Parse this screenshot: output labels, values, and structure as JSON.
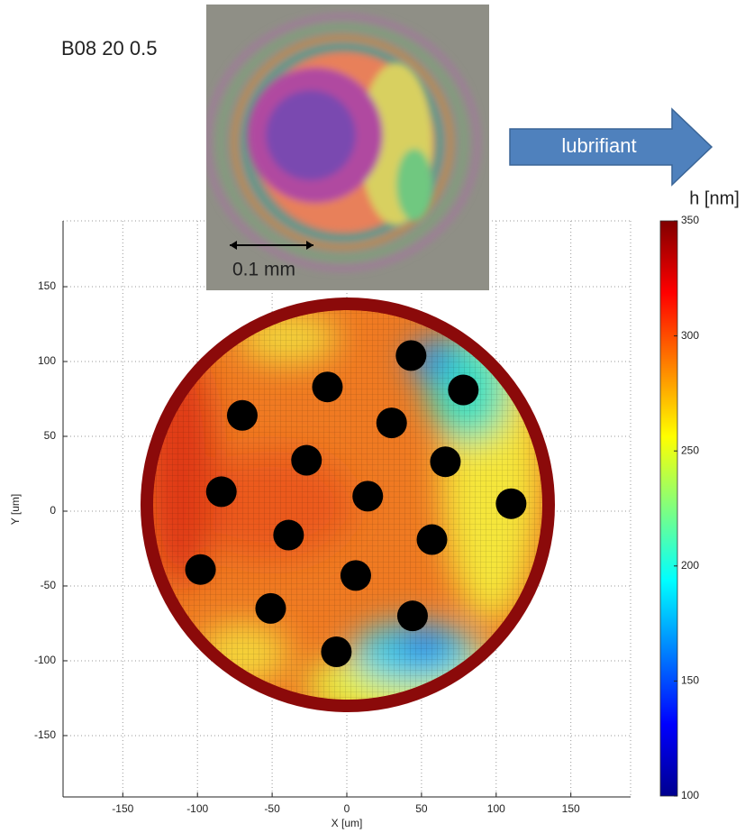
{
  "chart_data": {
    "type": "heatmap",
    "title": "B08 20 0.5",
    "x_label": "X [um]",
    "y_label": "Y [um]",
    "annotations": [
      "0.1 mm",
      "lubrifiant"
    ],
    "xlim": [
      -190,
      190
    ],
    "ylim": [
      -191,
      194
    ],
    "xticks": [
      -150,
      -100,
      -50,
      0,
      50,
      100,
      150
    ],
    "yticks": [
      -150,
      -100,
      -50,
      0,
      50,
      100,
      150
    ],
    "grid": true,
    "colorbar": {
      "label": "h [nm]",
      "lim": [
        100,
        350
      ],
      "ticks": [
        100,
        150,
        200,
        250,
        300,
        350
      ],
      "colormap": "jet"
    },
    "points": {
      "color": "#000000",
      "x": [
        43,
        78,
        -13,
        -70,
        30,
        -27,
        66,
        -84,
        14,
        110,
        -39,
        57,
        -98,
        6,
        -51,
        44,
        -7
      ],
      "y": [
        104,
        81,
        83,
        64,
        59,
        34,
        33,
        13,
        10,
        5,
        -16,
        -19,
        -39,
        -43,
        -65,
        -70,
        -94
      ]
    }
  }
}
